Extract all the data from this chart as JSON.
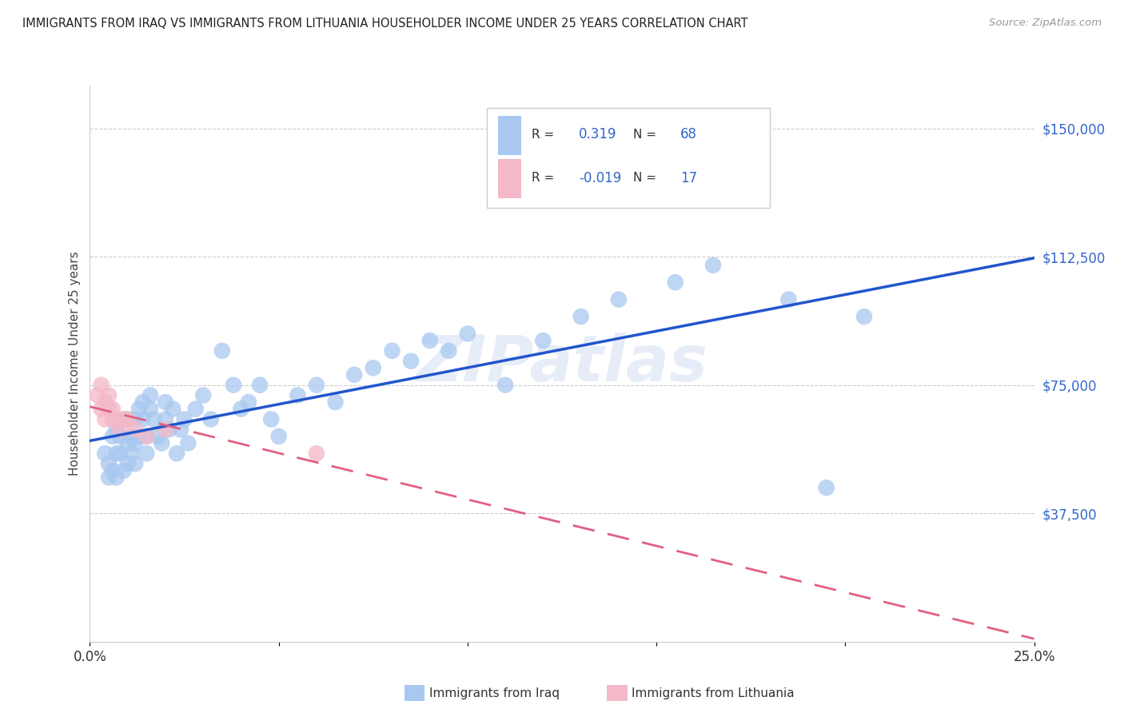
{
  "title": "IMMIGRANTS FROM IRAQ VS IMMIGRANTS FROM LITHUANIA HOUSEHOLDER INCOME UNDER 25 YEARS CORRELATION CHART",
  "source": "Source: ZipAtlas.com",
  "ylabel": "Householder Income Under 25 years",
  "xlim": [
    0.0,
    0.25
  ],
  "ylim": [
    0,
    162500
  ],
  "xticks": [
    0.0,
    0.05,
    0.1,
    0.15,
    0.2,
    0.25
  ],
  "xtick_labels": [
    "0.0%",
    "",
    "",
    "",
    "",
    "25.0%"
  ],
  "ytick_vals": [
    37500,
    75000,
    112500,
    150000
  ],
  "ytick_labels": [
    "$37,500",
    "$75,000",
    "$112,500",
    "$150,000"
  ],
  "iraq_R": 0.319,
  "iraq_N": 68,
  "lith_R": -0.019,
  "lith_N": 17,
  "iraq_color": "#a8c8f0",
  "lith_color": "#f4b8c8",
  "iraq_line_color": "#2255cc",
  "lith_line_color": "#e06080",
  "watermark": "ZIPatlas",
  "legend_iraq_label": "Immigrants from Iraq",
  "legend_lith_label": "Immigrants from Lithuania",
  "iraq_x": [
    0.004,
    0.005,
    0.005,
    0.006,
    0.006,
    0.007,
    0.007,
    0.007,
    0.008,
    0.008,
    0.009,
    0.009,
    0.01,
    0.01,
    0.01,
    0.011,
    0.011,
    0.012,
    0.012,
    0.012,
    0.013,
    0.013,
    0.014,
    0.014,
    0.015,
    0.015,
    0.016,
    0.016,
    0.017,
    0.018,
    0.019,
    0.02,
    0.02,
    0.021,
    0.022,
    0.023,
    0.024,
    0.025,
    0.026,
    0.028,
    0.03,
    0.032,
    0.035,
    0.038,
    0.04,
    0.042,
    0.045,
    0.048,
    0.05,
    0.055,
    0.06,
    0.065,
    0.07,
    0.075,
    0.08,
    0.085,
    0.09,
    0.095,
    0.1,
    0.11,
    0.12,
    0.13,
    0.14,
    0.155,
    0.165,
    0.185,
    0.195,
    0.205
  ],
  "iraq_y": [
    55000,
    48000,
    52000,
    60000,
    50000,
    55000,
    62000,
    48000,
    55000,
    60000,
    65000,
    50000,
    58000,
    52000,
    65000,
    60000,
    55000,
    65000,
    58000,
    52000,
    68000,
    60000,
    65000,
    70000,
    60000,
    55000,
    68000,
    72000,
    65000,
    60000,
    58000,
    65000,
    70000,
    62000,
    68000,
    55000,
    62000,
    65000,
    58000,
    68000,
    72000,
    65000,
    85000,
    75000,
    68000,
    70000,
    75000,
    65000,
    60000,
    72000,
    75000,
    70000,
    78000,
    80000,
    85000,
    82000,
    88000,
    85000,
    90000,
    75000,
    88000,
    95000,
    100000,
    105000,
    110000,
    100000,
    45000,
    95000
  ],
  "lith_x": [
    0.002,
    0.003,
    0.003,
    0.004,
    0.004,
    0.005,
    0.005,
    0.006,
    0.006,
    0.007,
    0.008,
    0.009,
    0.01,
    0.012,
    0.015,
    0.02,
    0.06
  ],
  "lith_y": [
    72000,
    68000,
    75000,
    65000,
    70000,
    68000,
    72000,
    65000,
    68000,
    65000,
    62000,
    65000,
    65000,
    62000,
    60000,
    62000,
    55000
  ]
}
